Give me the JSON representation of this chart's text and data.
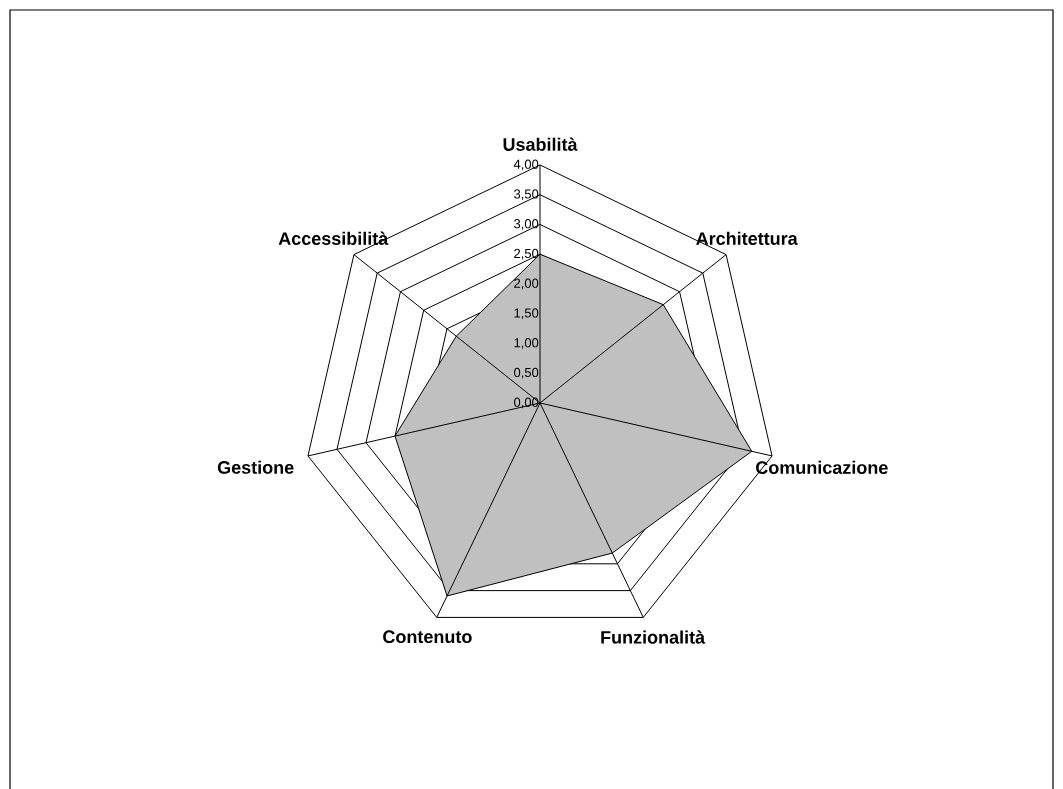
{
  "chart_data": {
    "type": "radar",
    "categories": [
      "Usabilità",
      "Architettura",
      "Comunicazione",
      "Funzionalità",
      "Contenuto",
      "Gestione",
      "Accessibilità"
    ],
    "series": [
      {
        "color": "#c0c0c0",
        "values": [
          2.5,
          2.65,
          3.65,
          2.8,
          3.6,
          2.5,
          1.8
        ]
      }
    ],
    "ylim": [
      0,
      4
    ],
    "yticks": [
      {
        "value": 0,
        "label": "0,00"
      },
      {
        "value": 0.5,
        "label": "0,50"
      },
      {
        "value": 1,
        "label": "1,00"
      },
      {
        "value": 1.5,
        "label": "1,50"
      },
      {
        "value": 2,
        "label": "2,00"
      },
      {
        "value": 2.5,
        "label": "2,50"
      },
      {
        "value": 3,
        "label": "3,00"
      },
      {
        "value": 3.5,
        "label": "3,50"
      },
      {
        "value": 4,
        "label": "4,00"
      }
    ],
    "grid": true
  }
}
